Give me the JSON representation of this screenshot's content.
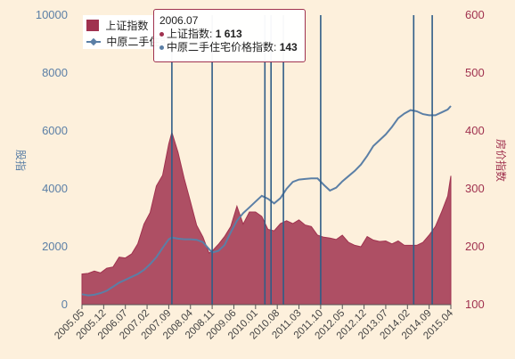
{
  "chart_data": {
    "type": "area",
    "title": "",
    "ylabel_left": "股指",
    "ylabel_right": "房价指数",
    "ylim_left": [
      0,
      10000
    ],
    "ylim_right": [
      100,
      600
    ],
    "yticks_left": [
      "0",
      "2000",
      "4000",
      "6000",
      "8000",
      "10000"
    ],
    "yticks_right": [
      "100",
      "200",
      "300",
      "400",
      "500",
      "600"
    ],
    "xticks": [
      "2005.05",
      "2005.12",
      "2006.07",
      "2007.02",
      "2007.09",
      "2008.04",
      "2008.11",
      "2009.06",
      "2010.01",
      "2010.08",
      "2011.03",
      "2011.10",
      "2012.05",
      "2012.12",
      "2013.07",
      "2014.02",
      "2014.09",
      "2015.04"
    ],
    "series": [
      {
        "name": "上证指数",
        "type": "area",
        "color": "#a0324f",
        "axis": "left",
        "x": [
          "2005.05",
          "2005.07",
          "2005.09",
          "2005.11",
          "2006.01",
          "2006.03",
          "2006.05",
          "2006.07",
          "2006.09",
          "2006.11",
          "2007.01",
          "2007.03",
          "2007.05",
          "2007.07",
          "2007.09",
          "2007.10",
          "2007.12",
          "2008.02",
          "2008.04",
          "2008.06",
          "2008.08",
          "2008.10",
          "2008.11",
          "2009.01",
          "2009.03",
          "2009.05",
          "2009.07",
          "2009.09",
          "2009.11",
          "2010.01",
          "2010.03",
          "2010.05",
          "2010.07",
          "2010.09",
          "2010.11",
          "2011.01",
          "2011.03",
          "2011.05",
          "2011.07",
          "2011.09",
          "2011.11",
          "2012.01",
          "2012.03",
          "2012.05",
          "2012.07",
          "2012.09",
          "2012.11",
          "2013.01",
          "2013.03",
          "2013.05",
          "2013.07",
          "2013.09",
          "2013.11",
          "2014.01",
          "2014.03",
          "2014.05",
          "2014.07",
          "2014.09",
          "2014.11",
          "2015.01",
          "2015.03",
          "2015.04"
        ],
        "values": [
          1060,
          1080,
          1160,
          1100,
          1260,
          1300,
          1640,
          1613,
          1750,
          2100,
          2780,
          3180,
          4100,
          4470,
          5550,
          5950,
          5260,
          4350,
          3550,
          2740,
          2340,
          1780,
          1850,
          2080,
          2350,
          2700,
          3400,
          2780,
          3200,
          3200,
          3050,
          2600,
          2550,
          2800,
          2900,
          2800,
          2930,
          2750,
          2700,
          2400,
          2330,
          2300,
          2250,
          2400,
          2150,
          2050,
          2000,
          2350,
          2230,
          2180,
          2200,
          2100,
          2200,
          2050,
          2050,
          2050,
          2150,
          2400,
          2700,
          3200,
          3750,
          4450
        ]
      },
      {
        "name": "中原二手住宅价格指数",
        "type": "line",
        "color": "#5b7fa6",
        "axis": "right",
        "x": [
          "2005.05",
          "2005.07",
          "2005.09",
          "2005.11",
          "2006.01",
          "2006.03",
          "2006.05",
          "2006.07",
          "2006.09",
          "2006.11",
          "2007.01",
          "2007.03",
          "2007.05",
          "2007.07",
          "2007.09",
          "2007.10",
          "2007.12",
          "2008.02",
          "2008.04",
          "2008.06",
          "2008.08",
          "2008.10",
          "2008.11",
          "2009.01",
          "2009.03",
          "2009.05",
          "2009.07",
          "2009.09",
          "2009.11",
          "2010.01",
          "2010.03",
          "2010.05",
          "2010.07",
          "2010.09",
          "2010.11",
          "2011.01",
          "2011.03",
          "2011.05",
          "2011.07",
          "2011.09",
          "2011.11",
          "2012.01",
          "2012.03",
          "2012.05",
          "2012.07",
          "2012.09",
          "2012.11",
          "2013.01",
          "2013.03",
          "2013.05",
          "2013.07",
          "2013.09",
          "2013.11",
          "2014.01",
          "2014.03",
          "2014.05",
          "2014.07",
          "2014.09",
          "2014.11",
          "2015.01",
          "2015.03",
          "2015.04"
        ],
        "values": [
          118,
          116,
          117,
          120,
          124,
          131,
          138,
          143,
          148,
          153,
          160,
          170,
          182,
          198,
          213,
          216,
          214,
          213,
          213,
          212,
          208,
          196,
          190,
          193,
          203,
          225,
          245,
          258,
          268,
          278,
          288,
          283,
          275,
          284,
          300,
          312,
          316,
          317,
          318,
          318,
          307,
          297,
          302,
          313,
          322,
          331,
          342,
          357,
          374,
          384,
          394,
          407,
          422,
          430,
          436,
          434,
          429,
          427,
          427,
          432,
          437,
          443
        ]
      }
    ],
    "vertical_lines": [
      "2007.10",
      "2008.11",
      "2010.04",
      "2010.06",
      "2010.10",
      "2011.10",
      "2014.04",
      "2014.10"
    ],
    "tooltip": {
      "x": "2006.07",
      "rows": [
        {
          "label": "上证指数:",
          "value": "1 613",
          "color": "#a0324f"
        },
        {
          "label": "中原二手住宅价格指数:",
          "value": "143",
          "color": "#5b7fa6"
        }
      ]
    },
    "legend_position": "top-left",
    "grid": false
  }
}
